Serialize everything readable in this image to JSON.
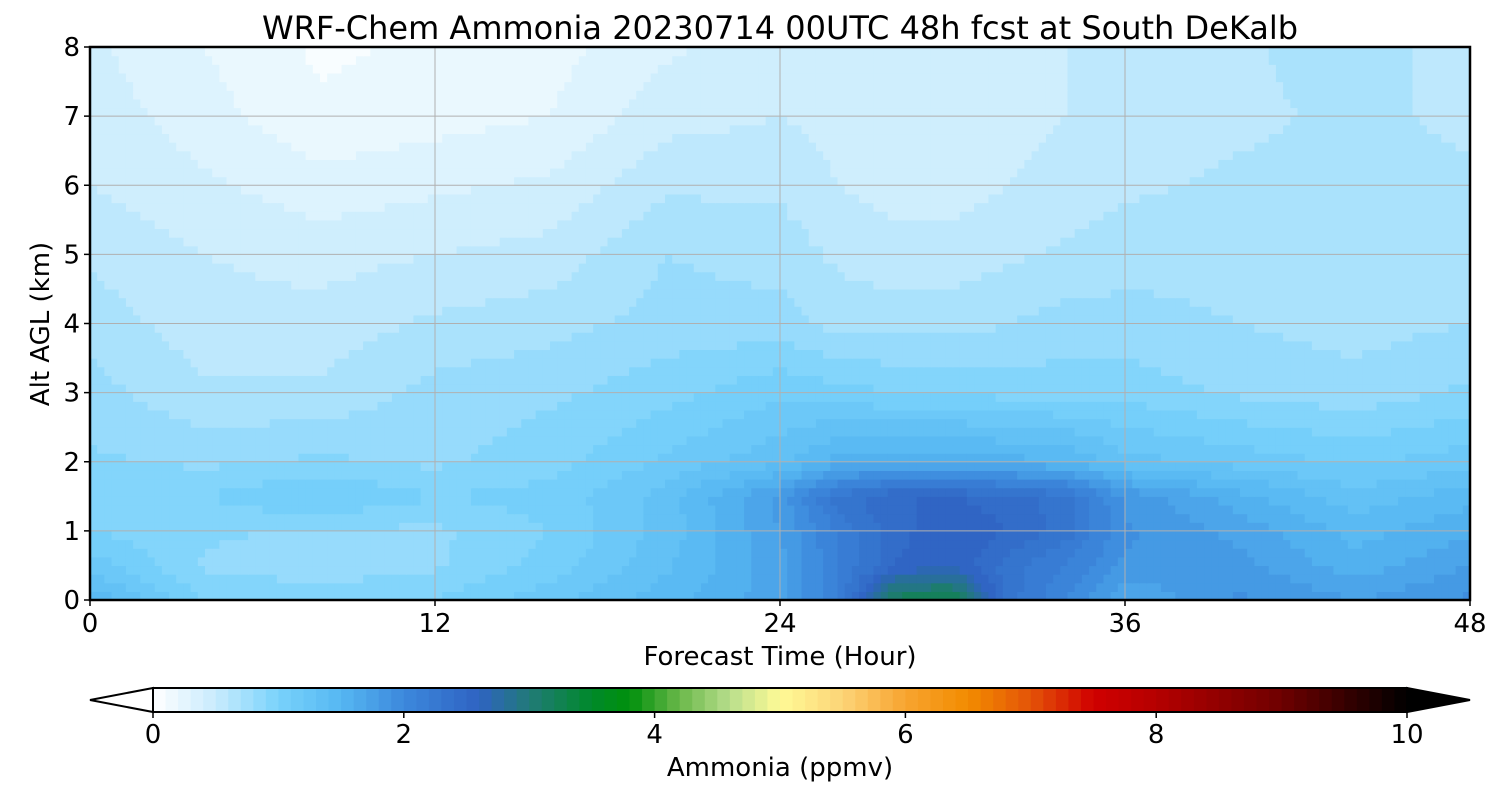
{
  "chart_data": {
    "type": "heatmap",
    "title": "WRF-Chem Ammonia  20230714 00UTC 48h fcst at South DeKalb",
    "xlabel": "Forecast Time (Hour)",
    "ylabel": "Alt AGL (km)",
    "xlim": [
      0,
      48
    ],
    "ylim": [
      0,
      8
    ],
    "x_ticks": [
      "0",
      "12",
      "24",
      "36",
      "48"
    ],
    "y_ticks": [
      "0",
      "1",
      "2",
      "3",
      "4",
      "5",
      "6",
      "7",
      "8"
    ],
    "grid": true,
    "colorbar": {
      "label": "Ammonia  (ppmv)",
      "range": [
        0,
        10
      ],
      "ticks": [
        "0",
        "2",
        "4",
        "6",
        "8",
        "10"
      ],
      "extend": "both",
      "orientation": "horizontal",
      "stops": [
        {
          "v": 0.0,
          "c": "#ffffff"
        },
        {
          "v": 0.5,
          "c": "#c8ebfd"
        },
        {
          "v": 1.0,
          "c": "#79d2fb"
        },
        {
          "v": 1.5,
          "c": "#55b7f2"
        },
        {
          "v": 2.0,
          "c": "#3c88dc"
        },
        {
          "v": 2.6,
          "c": "#2f63c2"
        },
        {
          "v": 3.0,
          "c": "#217a78"
        },
        {
          "v": 3.5,
          "c": "#00892a"
        },
        {
          "v": 3.8,
          "c": "#00900c"
        },
        {
          "v": 4.2,
          "c": "#6ab84a"
        },
        {
          "v": 4.6,
          "c": "#b8de8c"
        },
        {
          "v": 5.0,
          "c": "#fffa96"
        },
        {
          "v": 5.5,
          "c": "#fcd477"
        },
        {
          "v": 6.0,
          "c": "#f7a430"
        },
        {
          "v": 6.5,
          "c": "#f28c00"
        },
        {
          "v": 7.0,
          "c": "#e45308"
        },
        {
          "v": 7.5,
          "c": "#d00000"
        },
        {
          "v": 8.0,
          "c": "#b50000"
        },
        {
          "v": 9.0,
          "c": "#6e0000"
        },
        {
          "v": 10.0,
          "c": "#000000"
        }
      ]
    },
    "x": [
      0,
      4,
      8,
      12,
      16,
      20,
      24,
      26,
      28,
      30,
      32,
      34,
      36,
      40,
      44,
      48
    ],
    "y": [
      0,
      0.5,
      1,
      1.5,
      2,
      3,
      4,
      5,
      6,
      7,
      8
    ],
    "z": [
      [
        1.5,
        1.0,
        0.95,
        1.0,
        1.2,
        1.45,
        1.7,
        2.1,
        3.2,
        3.3,
        2.3,
        2.0,
        1.6,
        1.9,
        1.75,
        1.9
      ],
      [
        1.2,
        0.85,
        0.8,
        0.85,
        1.05,
        1.35,
        1.7,
        2.1,
        2.5,
        2.6,
        2.3,
        2.1,
        1.85,
        1.8,
        1.55,
        1.75
      ],
      [
        1.0,
        0.9,
        0.85,
        0.85,
        1.0,
        1.3,
        1.75,
        2.15,
        2.45,
        2.6,
        2.5,
        2.3,
        1.9,
        1.7,
        1.45,
        1.6
      ],
      [
        0.95,
        1.0,
        1.15,
        1.0,
        1.05,
        1.3,
        1.8,
        2.3,
        2.5,
        2.5,
        2.45,
        2.3,
        1.85,
        1.55,
        1.3,
        1.45
      ],
      [
        0.9,
        0.85,
        0.9,
        0.85,
        0.95,
        1.15,
        1.35,
        1.55,
        1.6,
        1.6,
        1.55,
        1.5,
        1.3,
        1.2,
        1.1,
        1.2
      ],
      [
        0.8,
        0.65,
        0.65,
        0.8,
        0.85,
        0.95,
        1.1,
        1.05,
        1.0,
        1.0,
        0.95,
        0.95,
        0.95,
        0.85,
        0.8,
        0.9
      ],
      [
        0.7,
        0.55,
        0.55,
        0.65,
        0.7,
        0.8,
        0.8,
        0.7,
        0.7,
        0.7,
        0.75,
        0.8,
        0.8,
        0.75,
        0.7,
        0.75
      ],
      [
        0.6,
        0.5,
        0.45,
        0.5,
        0.55,
        0.75,
        0.7,
        0.6,
        0.55,
        0.55,
        0.6,
        0.65,
        0.7,
        0.7,
        0.65,
        0.7
      ],
      [
        0.5,
        0.4,
        0.3,
        0.35,
        0.4,
        0.6,
        0.6,
        0.5,
        0.45,
        0.45,
        0.5,
        0.55,
        0.6,
        0.65,
        0.65,
        0.65
      ],
      [
        0.45,
        0.3,
        0.15,
        0.2,
        0.25,
        0.45,
        0.5,
        0.45,
        0.4,
        0.4,
        0.45,
        0.5,
        0.55,
        0.6,
        0.65,
        0.6
      ],
      [
        0.4,
        0.25,
        0.1,
        0.15,
        0.2,
        0.35,
        0.45,
        0.45,
        0.4,
        0.4,
        0.45,
        0.5,
        0.5,
        0.6,
        0.7,
        0.55
      ]
    ]
  }
}
